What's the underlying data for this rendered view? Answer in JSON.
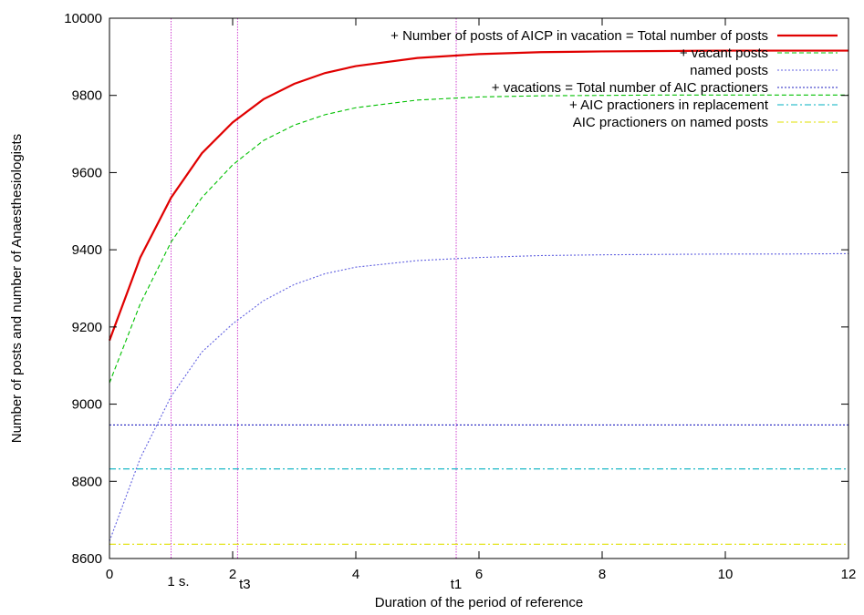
{
  "chart_data": {
    "type": "line",
    "xlabel": "Duration of the period of reference",
    "ylabel": "Number of posts and number of Anaesthesiologists",
    "xlim": [
      0,
      12
    ],
    "ylim": [
      8600,
      10000
    ],
    "xticks": [
      0,
      2,
      4,
      6,
      8,
      10,
      12
    ],
    "yticks": [
      8600,
      8800,
      9000,
      9200,
      9400,
      9600,
      9800,
      10000
    ],
    "grid": false,
    "legend_position": "top-right",
    "vertical_markers": [
      {
        "x": 1.0,
        "label": "1 s."
      },
      {
        "x": 2.08,
        "label": "t3"
      },
      {
        "x": 5.63,
        "label": "t1"
      }
    ],
    "series": [
      {
        "name": "+ Number of posts of AICP in vacation = Total number of posts",
        "color": "#e00000",
        "style": "solid",
        "x": [
          0,
          0.5,
          1,
          1.5,
          2,
          2.5,
          3,
          3.5,
          4,
          5,
          6,
          7,
          8,
          9,
          10,
          11,
          12
        ],
        "y": [
          9165,
          9380,
          9535,
          9650,
          9730,
          9790,
          9830,
          9858,
          9876,
          9897,
          9907,
          9912,
          9914,
          9915,
          9916,
          9916,
          9916
        ]
      },
      {
        "name": "+ vacant posts",
        "color": "#00c000",
        "style": "dashed",
        "x": [
          0,
          0.5,
          1,
          1.5,
          2,
          2.5,
          3,
          3.5,
          4,
          5,
          6,
          7,
          8,
          9,
          10,
          11,
          12
        ],
        "y": [
          9055,
          9260,
          9420,
          9535,
          9620,
          9683,
          9723,
          9750,
          9768,
          9788,
          9796,
          9799,
          9800,
          9801,
          9801,
          9801,
          9801
        ]
      },
      {
        "name": "named posts",
        "color": "#6060e0",
        "style": "dotted",
        "x": [
          0,
          0.5,
          1,
          1.5,
          2,
          2.5,
          3,
          3.5,
          4,
          5,
          6,
          7,
          8,
          9,
          10,
          11,
          12
        ],
        "y": [
          8645,
          8860,
          9020,
          9135,
          9208,
          9268,
          9310,
          9338,
          9355,
          9372,
          9380,
          9385,
          9387,
          9388,
          9389,
          9389,
          9390
        ]
      },
      {
        "name": "+ vacations = Total number of AIC practioners",
        "color": "#2020c0",
        "style": "dotted-dense",
        "x": [
          0,
          12
        ],
        "y": [
          8946,
          8946
        ]
      },
      {
        "name": "+ AIC practioners in replacement",
        "color": "#00b0c0",
        "style": "dashdot",
        "x": [
          0,
          12
        ],
        "y": [
          8832,
          8832
        ]
      },
      {
        "name": "AIC practioners on named posts",
        "color": "#e0e000",
        "style": "dashdot",
        "x": [
          0,
          12
        ],
        "y": [
          8637,
          8637
        ]
      }
    ]
  }
}
